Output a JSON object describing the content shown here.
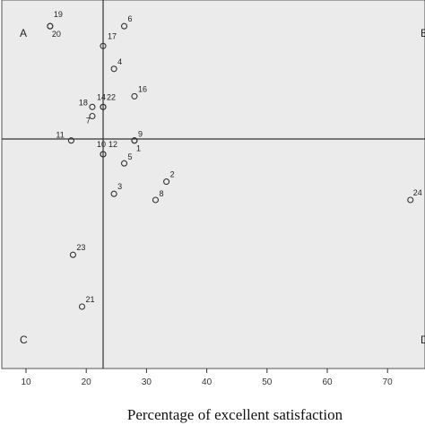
{
  "chart_data": {
    "type": "scatter",
    "xlabel": "Percentage of excellent satisfaction",
    "ylabel": "",
    "xlim": [
      7,
      76
    ],
    "x_ticks": [
      10,
      20,
      30,
      40,
      50,
      60,
      70
    ],
    "y_axis_visible": false,
    "ref_line_x": 22.8,
    "ref_line_y": 51.5,
    "quadrant_labels": {
      "top_left": "A",
      "top_right": "B",
      "bottom_left": "C",
      "bottom_right": "D"
    },
    "colors": {
      "plot_bg": "#ebebeb",
      "panel_bg": "#ffffff",
      "axis": "#333333",
      "ref_line": "#333333",
      "marker": "#333333"
    },
    "points": [
      {
        "label": "19",
        "x": 14.0,
        "y": 88.5
      },
      {
        "label": "20",
        "x": 14.0,
        "y": 88.5
      },
      {
        "label": "6",
        "x": 26.3,
        "y": 88.5
      },
      {
        "label": "17",
        "x": 22.8,
        "y": 82.0
      },
      {
        "label": "4",
        "x": 24.6,
        "y": 74.5
      },
      {
        "label": "16",
        "x": 28.0,
        "y": 65.5
      },
      {
        "label": "14",
        "x": 22.8,
        "y": 62.0
      },
      {
        "label": "22",
        "x": 22.8,
        "y": 62.0
      },
      {
        "label": "18",
        "x": 21.0,
        "y": 62.0
      },
      {
        "label": "7",
        "x": 21.0,
        "y": 59.0
      },
      {
        "label": "11",
        "x": 17.5,
        "y": 51.0
      },
      {
        "label": "9",
        "x": 28.0,
        "y": 51.0
      },
      {
        "label": "10",
        "x": 22.8,
        "y": 46.5
      },
      {
        "label": "12",
        "x": 22.8,
        "y": 46.5
      },
      {
        "label": "1",
        "x": 28.0,
        "y": 51.0
      },
      {
        "label": "5",
        "x": 26.3,
        "y": 43.5
      },
      {
        "label": "2",
        "x": 33.3,
        "y": 37.5
      },
      {
        "label": "3",
        "x": 24.6,
        "y": 33.5
      },
      {
        "label": "8",
        "x": 31.5,
        "y": 31.5
      },
      {
        "label": "24",
        "x": 73.8,
        "y": 31.5
      },
      {
        "label": "23",
        "x": 17.8,
        "y": 13.5
      },
      {
        "label": "21",
        "x": 19.3,
        "y": -3.5
      }
    ]
  }
}
